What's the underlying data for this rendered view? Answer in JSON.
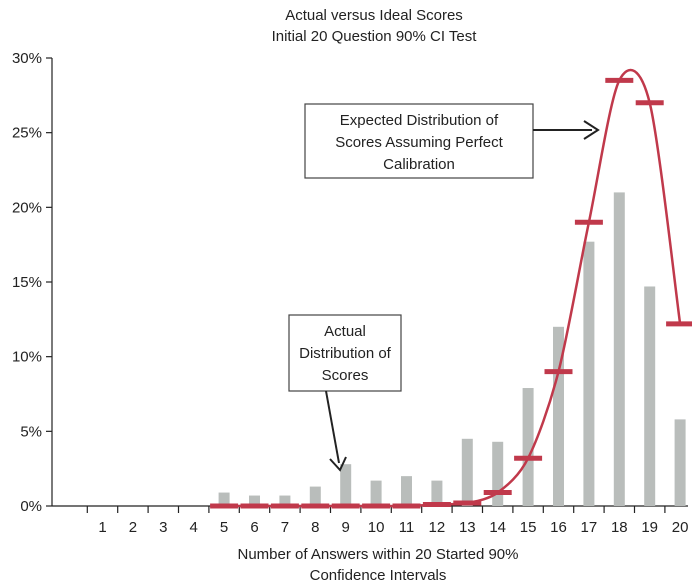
{
  "chart_data": {
    "type": "bar",
    "title": "Actual versus Ideal Scores",
    "subtitle": "Initial 20 Question 90% CI Test",
    "xlabel_lines": [
      "Number of Answers within 20 Started 90%",
      "Confidence Intervals"
    ],
    "ylabel": "",
    "ylim": [
      0,
      30
    ],
    "y_ticks": [
      "0%",
      "5%",
      "10%",
      "15%",
      "20%",
      "25%",
      "30%"
    ],
    "categories": [
      "1",
      "2",
      "3",
      "4",
      "5",
      "6",
      "7",
      "8",
      "9",
      "10",
      "11",
      "12",
      "13",
      "14",
      "15",
      "16",
      "17",
      "18",
      "19",
      "20"
    ],
    "grid": false,
    "series": [
      {
        "kind": "bar",
        "color": "#b9bdbb",
        "values": [
          0,
          0,
          0,
          0,
          0.9,
          0.7,
          0.7,
          1.3,
          2.8,
          1.7,
          2.0,
          1.7,
          4.5,
          4.3,
          7.9,
          12.0,
          17.7,
          21.0,
          14.7,
          5.8
        ]
      },
      {
        "kind": "line-with-markers",
        "color": "#c0394b",
        "values": [
          0,
          0,
          0,
          0,
          0,
          0,
          0,
          0,
          0,
          0,
          0,
          0.1,
          0.2,
          0.9,
          3.2,
          9.0,
          19.0,
          28.5,
          27.0,
          12.2
        ]
      }
    ],
    "annotations": [
      {
        "lines": [
          "Expected Distribution of",
          "Scores Assuming Perfect",
          "Calibration"
        ]
      },
      {
        "lines": [
          "Actual",
          "Distribution of",
          "Scores"
        ]
      }
    ]
  }
}
